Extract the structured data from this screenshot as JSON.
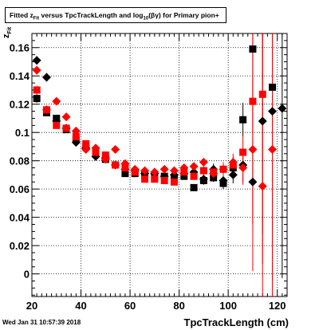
{
  "title": {
    "prefix": "Fitted",
    "z": "z",
    "z_sub": "Fit",
    "middle": "versus TpcTrackLength and log",
    "log_sub": "10",
    "beta_gamma": "(βγ)",
    "suffix": "for Primary pion+"
  },
  "timestamp": "Wed Jan 31 10:57:39 2018",
  "chart_data": {
    "type": "scatter",
    "title": "Fitted zFit versus TpcTrackLength and log10(βγ) for Primary pion+",
    "xlabel": "TpcTrackLength (cm)",
    "ylabel": "z",
    "ylabel_sub": "Fit",
    "xlim": [
      20,
      124
    ],
    "ylim": [
      -0.016,
      0.17
    ],
    "grid": true,
    "x_ticks": [
      20,
      40,
      60,
      80,
      100,
      120
    ],
    "x_tick_labels": [
      "20",
      "40",
      "60",
      "80",
      "100",
      "120"
    ],
    "y_ticks": [
      0,
      0.02,
      0.04,
      0.06,
      0.08,
      0.1,
      0.12,
      0.14,
      0.16
    ],
    "y_tick_labels": [
      "0",
      "0.02",
      "0.04",
      "0.06",
      "0.08",
      "0.1",
      "0.12",
      "0.14",
      "0.16"
    ],
    "series": [
      {
        "marker": "square",
        "color": "#000000",
        "points": [
          [
            22,
            0.124
          ],
          [
            26,
            0.114
          ],
          [
            30,
            0.11
          ],
          [
            34,
            0.102
          ],
          [
            38,
            0.095
          ],
          [
            42,
            0.09
          ],
          [
            46,
            0.085
          ],
          [
            50,
            0.081
          ],
          [
            54,
            0.077
          ],
          [
            58,
            0.071
          ],
          [
            62,
            0.071
          ],
          [
            66,
            0.07
          ],
          [
            70,
            0.068
          ],
          [
            74,
            0.069
          ],
          [
            78,
            0.067
          ],
          [
            82,
            0.069
          ],
          [
            86,
            0.061
          ],
          [
            90,
            0.066
          ],
          [
            94,
            0.068
          ],
          [
            98,
            0.064
          ],
          [
            102,
            0.075
          ],
          [
            106,
            0.109
          ],
          [
            110,
            0.159
          ],
          [
            118,
            0.132
          ]
        ],
        "errors": [
          0.003,
          0.002,
          0.002,
          0.002,
          0.002,
          0.002,
          0.002,
          0.002,
          0.002,
          0.002,
          0.002,
          0.002,
          0.002,
          0.002,
          0.002,
          0.002,
          0.002,
          0.003,
          0.003,
          0.004,
          0.006,
          0.012,
          0.06,
          0.08
        ]
      },
      {
        "marker": "diamond",
        "color": "#000000",
        "points": [
          [
            22,
            0.151
          ],
          [
            26,
            0.139
          ],
          [
            30,
            0.108
          ],
          [
            34,
            0.103
          ],
          [
            38,
            0.093
          ],
          [
            42,
            0.089
          ],
          [
            46,
            0.083
          ],
          [
            50,
            0.082
          ],
          [
            54,
            0.077
          ],
          [
            58,
            0.074
          ],
          [
            62,
            0.073
          ],
          [
            66,
            0.071
          ],
          [
            70,
            0.071
          ],
          [
            74,
            0.069
          ],
          [
            78,
            0.07
          ],
          [
            82,
            0.071
          ],
          [
            86,
            0.072
          ],
          [
            90,
            0.067
          ],
          [
            94,
            0.074
          ],
          [
            98,
            0.066
          ],
          [
            102,
            0.07
          ],
          [
            106,
            0.077
          ],
          [
            110,
            0.065
          ],
          [
            114,
            0.108
          ],
          [
            118,
            0.115
          ],
          [
            122,
            0.117
          ]
        ],
        "errors": [
          0.003,
          0.003,
          0.002,
          0.002,
          0.002,
          0.002,
          0.002,
          0.002,
          0.002,
          0.002,
          0.002,
          0.002,
          0.002,
          0.002,
          0.002,
          0.002,
          0.002,
          0.003,
          0.004,
          0.004,
          0.006,
          0.012,
          0.03,
          0.08,
          0.12,
          0.12
        ]
      },
      {
        "marker": "square",
        "color": "#ff0000",
        "points": [
          [
            22,
            0.13
          ],
          [
            26,
            0.116
          ],
          [
            30,
            0.105
          ],
          [
            34,
            0.103
          ],
          [
            38,
            0.097
          ],
          [
            42,
            0.092
          ],
          [
            46,
            0.086
          ],
          [
            50,
            0.084
          ],
          [
            54,
            0.077
          ],
          [
            58,
            0.075
          ],
          [
            62,
            0.072
          ],
          [
            66,
            0.067
          ],
          [
            70,
            0.067
          ],
          [
            74,
            0.066
          ],
          [
            78,
            0.065
          ],
          [
            82,
            0.072
          ],
          [
            86,
            0.069
          ],
          [
            90,
            0.073
          ],
          [
            94,
            0.072
          ],
          [
            98,
            0.074
          ],
          [
            102,
            0.077
          ],
          [
            106,
            0.086
          ],
          [
            110,
            0.122
          ],
          [
            114,
            0.127
          ]
        ],
        "errors": [
          0.003,
          0.002,
          0.002,
          0.002,
          0.002,
          0.002,
          0.002,
          0.002,
          0.002,
          0.002,
          0.002,
          0.002,
          0.002,
          0.002,
          0.002,
          0.002,
          0.002,
          0.003,
          0.004,
          0.005,
          0.006,
          0.012,
          0.12,
          0.12
        ]
      },
      {
        "marker": "diamond",
        "color": "#ff0000",
        "points": [
          [
            22,
            0.144
          ],
          [
            26,
            0.116
          ],
          [
            30,
            0.122
          ],
          [
            34,
            0.111
          ],
          [
            38,
            0.101
          ],
          [
            42,
            0.088
          ],
          [
            46,
            0.089
          ],
          [
            50,
            0.081
          ],
          [
            54,
            0.088
          ],
          [
            58,
            0.078
          ],
          [
            62,
            0.074
          ],
          [
            66,
            0.073
          ],
          [
            70,
            0.072
          ],
          [
            74,
            0.074
          ],
          [
            78,
            0.073
          ],
          [
            82,
            0.075
          ],
          [
            86,
            0.076
          ],
          [
            90,
            0.079
          ],
          [
            94,
            0.071
          ],
          [
            98,
            0.074
          ],
          [
            102,
            0.079
          ],
          [
            106,
            0.075
          ],
          [
            110,
            0.088
          ],
          [
            114,
            0.062
          ],
          [
            118,
            0.088
          ]
        ],
        "errors": [
          0.003,
          0.002,
          0.002,
          0.002,
          0.002,
          0.002,
          0.002,
          0.002,
          0.002,
          0.002,
          0.002,
          0.002,
          0.002,
          0.002,
          0.002,
          0.002,
          0.002,
          0.003,
          0.004,
          0.005,
          0.006,
          0.012,
          0.05,
          0.12,
          0.12
        ]
      }
    ]
  }
}
